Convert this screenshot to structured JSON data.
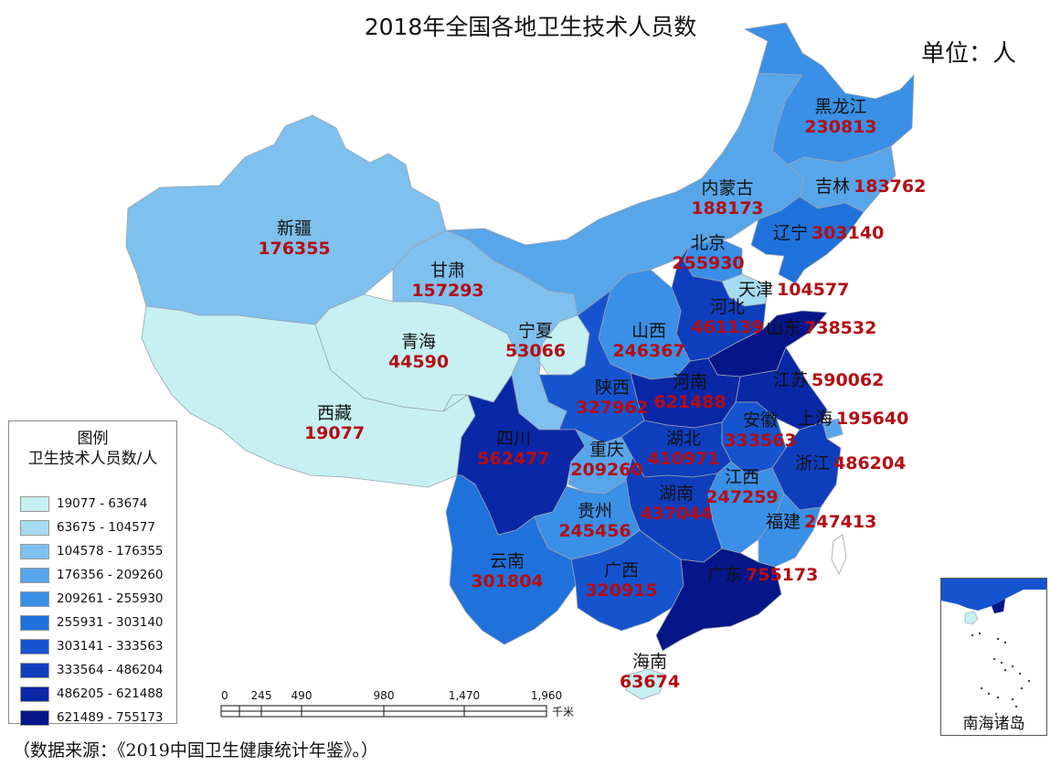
{
  "title": "2018年全国各地卫生技术人员数",
  "unit_label": "单位：人",
  "source": "（数据来源：《2019中国卫生健康统计年鉴》。）",
  "legend": {
    "title_line1": "图例",
    "title_line2": "卫生技术人员数/人",
    "classes": [
      {
        "range": "19077 - 63674",
        "color": "#c6f0f2"
      },
      {
        "range": "63675 - 104577",
        "color": "#a5dcf2"
      },
      {
        "range": "104578 - 176355",
        "color": "#7ec0ee"
      },
      {
        "range": "176356 - 209260",
        "color": "#58a6ea"
      },
      {
        "range": "209261 - 255930",
        "color": "#3a8fe6"
      },
      {
        "range": "255931 - 303140",
        "color": "#1f72dc"
      },
      {
        "range": "303141 - 333563",
        "color": "#1654cf"
      },
      {
        "range": "333564 - 486204",
        "color": "#0f3ebd"
      },
      {
        "range": "486205 - 621488",
        "color": "#0a27a6"
      },
      {
        "range": "621489 - 755173",
        "color": "#061688"
      }
    ]
  },
  "scale_bar": {
    "ticks": [
      "0",
      "245",
      "490",
      "980",
      "1,470",
      "1,960"
    ],
    "unit": "千米"
  },
  "inset_label": "南海诸岛",
  "provinces": [
    {
      "id": "xinjiang",
      "name": "新疆",
      "value": "176355",
      "cls": 2,
      "layout": "stack"
    },
    {
      "id": "xizang",
      "name": "西藏",
      "value": "19077",
      "cls": 0,
      "layout": "stack"
    },
    {
      "id": "qinghai",
      "name": "青海",
      "value": "44590",
      "cls": 0,
      "layout": "stack"
    },
    {
      "id": "gansu",
      "name": "甘肃",
      "value": "157293",
      "cls": 2,
      "layout": "stack"
    },
    {
      "id": "neimenggu",
      "name": "内蒙古",
      "value": "188173",
      "cls": 3,
      "layout": "stack"
    },
    {
      "id": "heilongjiang",
      "name": "黑龙江",
      "value": "230813",
      "cls": 4,
      "layout": "stack"
    },
    {
      "id": "jilin",
      "name": "吉林",
      "value": "183762",
      "cls": 3,
      "layout": "inline"
    },
    {
      "id": "liaoning",
      "name": "辽宁",
      "value": "303140",
      "cls": 5,
      "layout": "inline"
    },
    {
      "id": "beijing",
      "name": "北京",
      "value": "255930",
      "cls": 4,
      "layout": "stack"
    },
    {
      "id": "tianjin",
      "name": "天津",
      "value": "104577",
      "cls": 1,
      "layout": "inline"
    },
    {
      "id": "hebei",
      "name": "河北",
      "value": "461139",
      "cls": 7,
      "layout": "stack"
    },
    {
      "id": "shandong",
      "name": "山东",
      "value": "738532",
      "cls": 9,
      "layout": "inline"
    },
    {
      "id": "ningxia",
      "name": "宁夏",
      "value": "53066",
      "cls": 0,
      "layout": "stack"
    },
    {
      "id": "shanxi",
      "name": "山西",
      "value": "246367",
      "cls": 4,
      "layout": "stack"
    },
    {
      "id": "shaanxi",
      "name": "陕西",
      "value": "327962",
      "cls": 6,
      "layout": "stack"
    },
    {
      "id": "henan",
      "name": "河南",
      "value": "621488",
      "cls": 8,
      "layout": "stack"
    },
    {
      "id": "jiangsu",
      "name": "江苏",
      "value": "590062",
      "cls": 8,
      "layout": "inline"
    },
    {
      "id": "shanghai",
      "name": "上海",
      "value": "195640",
      "cls": 3,
      "layout": "inline"
    },
    {
      "id": "anhui",
      "name": "安徽",
      "value": "333563",
      "cls": 6,
      "layout": "stack"
    },
    {
      "id": "zhejiang",
      "name": "浙江",
      "value": "486204",
      "cls": 7,
      "layout": "inline"
    },
    {
      "id": "sichuan",
      "name": "四川",
      "value": "562477",
      "cls": 8,
      "layout": "stack"
    },
    {
      "id": "chongqing",
      "name": "重庆",
      "value": "209260",
      "cls": 3,
      "layout": "stack"
    },
    {
      "id": "hubei",
      "name": "湖北",
      "value": "410971",
      "cls": 7,
      "layout": "stack"
    },
    {
      "id": "jiangxi",
      "name": "江西",
      "value": "247259",
      "cls": 4,
      "layout": "stack"
    },
    {
      "id": "hunan",
      "name": "湖南",
      "value": "437044",
      "cls": 7,
      "layout": "stack"
    },
    {
      "id": "guizhou",
      "name": "贵州",
      "value": "245456",
      "cls": 4,
      "layout": "stack"
    },
    {
      "id": "fujian",
      "name": "福建",
      "value": "247413",
      "cls": 4,
      "layout": "inline"
    },
    {
      "id": "yunnan",
      "name": "云南",
      "value": "301804",
      "cls": 5,
      "layout": "stack"
    },
    {
      "id": "guangxi",
      "name": "广西",
      "value": "320915",
      "cls": 6,
      "layout": "stack"
    },
    {
      "id": "guangdong",
      "name": "广东",
      "value": "755173",
      "cls": 9,
      "layout": "inline"
    },
    {
      "id": "hainan",
      "name": "海南",
      "value": "63674",
      "cls": 0,
      "layout": "stack"
    }
  ]
}
